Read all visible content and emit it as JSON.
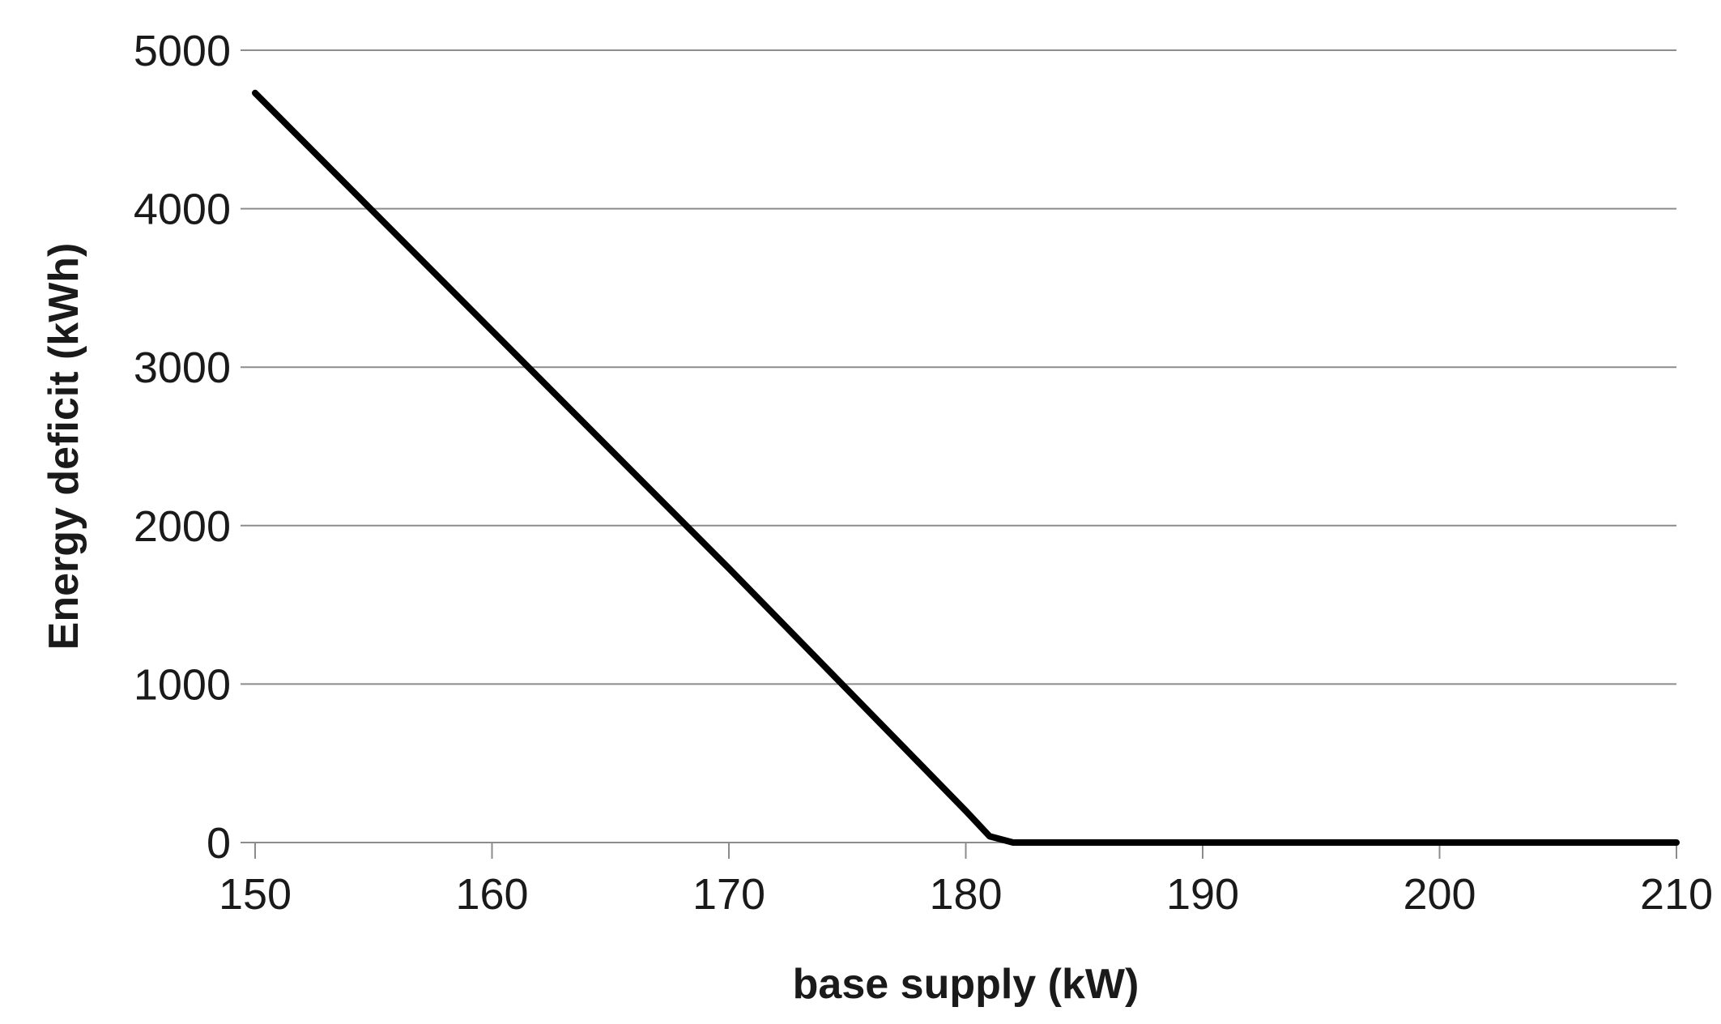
{
  "chart_data": {
    "type": "line",
    "title": "",
    "xlabel": "base supply (kW)",
    "ylabel": "Energy deficit (kWh)",
    "xlim": [
      150,
      210
    ],
    "ylim": [
      0,
      5000
    ],
    "xticks": [
      150,
      160,
      170,
      180,
      190,
      200,
      210
    ],
    "yticks": [
      0,
      1000,
      2000,
      3000,
      4000,
      5000
    ],
    "x_tick_labels": [
      "150",
      "160",
      "170",
      "180",
      "190",
      "200",
      "210"
    ],
    "y_tick_labels": [
      "0",
      "1000",
      "2000",
      "3000",
      "4000",
      "5000"
    ],
    "grid": "horizontal",
    "legend": "none",
    "series": [
      {
        "color": "#000000",
        "x": [
          150,
          160,
          170,
          180,
          181,
          182,
          190,
          200,
          210
        ],
        "y": [
          4730,
          3230,
          1730,
          200,
          40,
          0,
          0,
          0,
          0
        ]
      }
    ]
  }
}
